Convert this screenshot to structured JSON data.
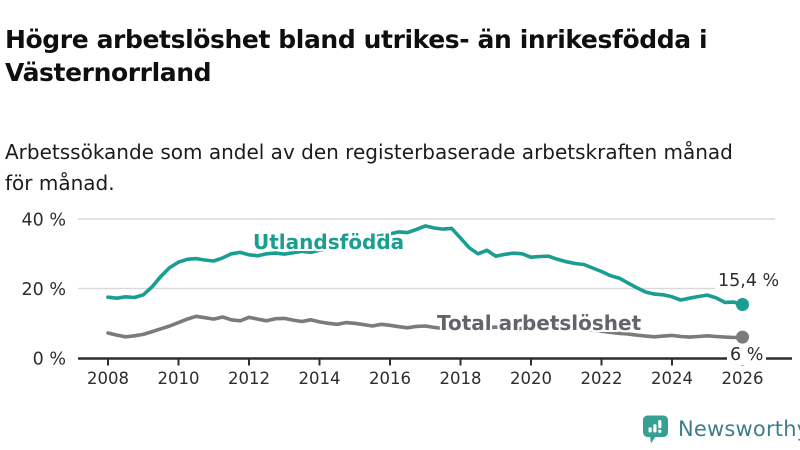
{
  "header": {
    "title_lines": [
      "Högre arbetslöshet bland utrikes- än inrikesfödda i",
      "Västernorrland"
    ],
    "subtitle_lines": [
      "Arbetssökande som andel av den registerbaserade arbetskraften månad",
      "för månad."
    ]
  },
  "colors": {
    "teal": "#1a9e91",
    "gray": "#7b7b7b",
    "series_label_gray": "#63636b",
    "axis": "#2d2d2d",
    "grid": "#d9d9d9",
    "tick_label": "#2d2d2d",
    "value_label": "#2d2d2d",
    "logo_icon": "#36a193",
    "logo_text": "#3e7d8e"
  },
  "chart_data": {
    "type": "line",
    "title": "Högre arbetslöshet bland utrikes- än inrikesfödda i Västernorrland",
    "subtitle": "Arbetssökande som andel av den registerbaserade arbetskraften månad för månad.",
    "unit": "%",
    "grid": "horizontal",
    "legend": "inline-labels",
    "ylim": [
      0,
      44
    ],
    "xlim": [
      2008,
      2026.1
    ],
    "y_ticks": [
      {
        "v": 0,
        "label": "0 %"
      },
      {
        "v": 20,
        "label": "20 %"
      },
      {
        "v": 40,
        "label": "40 %"
      }
    ],
    "x_ticks": [
      {
        "v": 2008,
        "label": "2008"
      },
      {
        "v": 2010,
        "label": "2010"
      },
      {
        "v": 2012,
        "label": "2012"
      },
      {
        "v": 2014,
        "label": "2014"
      },
      {
        "v": 2016,
        "label": "2016"
      },
      {
        "v": 2018,
        "label": "2018"
      },
      {
        "v": 2020,
        "label": "2020"
      },
      {
        "v": 2022,
        "label": "2022"
      },
      {
        "v": 2024,
        "label": "2024"
      },
      {
        "v": 2026,
        "label": "2026"
      }
    ],
    "x": [
      2008,
      2008.25,
      2008.5,
      2008.75,
      2009,
      2009.25,
      2009.5,
      2009.75,
      2010,
      2010.25,
      2010.5,
      2010.75,
      2011,
      2011.25,
      2011.5,
      2011.75,
      2012,
      2012.25,
      2012.5,
      2012.75,
      2013,
      2013.25,
      2013.5,
      2013.75,
      2014,
      2014.25,
      2014.5,
      2014.75,
      2015,
      2015.25,
      2015.5,
      2015.75,
      2016,
      2016.25,
      2016.5,
      2016.75,
      2017,
      2017.25,
      2017.5,
      2017.75,
      2018,
      2018.25,
      2018.5,
      2018.75,
      2019,
      2019.25,
      2019.5,
      2019.75,
      2020,
      2020.25,
      2020.5,
      2020.75,
      2021,
      2021.25,
      2021.5,
      2021.75,
      2022,
      2022.25,
      2022.5,
      2022.75,
      2023,
      2023.25,
      2023.5,
      2023.75,
      2024,
      2024.25,
      2024.5,
      2024.75,
      2025,
      2025.25,
      2025.5,
      2025.75,
      2026
    ],
    "series": [
      {
        "name": "Utlandsfödda",
        "color": "#1a9e91",
        "end_label": "15,4 %",
        "end_value": 15.4,
        "values": [
          17.5,
          17.2,
          17.6,
          17.4,
          18.2,
          20.5,
          23.5,
          26,
          27.6,
          28.4,
          28.6,
          28.2,
          27.9,
          28.8,
          30,
          30.4,
          29.7,
          29.4,
          30,
          30.2,
          29.9,
          30.3,
          30.7,
          30.4,
          31,
          31.6,
          32.1,
          32.8,
          33.5,
          34.1,
          34.8,
          35.2,
          35.7,
          36.3,
          36.1,
          37,
          38,
          37.4,
          37.1,
          37.3,
          34.5,
          31.7,
          30,
          31,
          29.3,
          29.8,
          30.2,
          30,
          29,
          29.2,
          29.3,
          28.4,
          27.7,
          27.2,
          26.9,
          25.9,
          24.9,
          23.7,
          23,
          21.6,
          20.2,
          19,
          18.4,
          18.2,
          17.6,
          16.7,
          17.2,
          17.7,
          18.1,
          17.3,
          16,
          16.1,
          15.4
        ]
      },
      {
        "name": "Total arbetslöshet",
        "color": "#7b7b7b",
        "end_label": "6 %",
        "end_value": 6,
        "values": [
          7.2,
          6.6,
          6.1,
          6.4,
          6.8,
          7.6,
          8.4,
          9.2,
          10.2,
          11.2,
          12,
          11.6,
          11.2,
          11.8,
          11,
          10.7,
          11.7,
          11.2,
          10.7,
          11.3,
          11.4,
          10.9,
          10.5,
          11,
          10.4,
          10,
          9.7,
          10.2,
          10,
          9.6,
          9.2,
          9.7,
          9.4,
          9,
          8.7,
          9.1,
          9.2,
          8.8,
          8.5,
          8.9,
          9,
          8.6,
          8.3,
          8.7,
          8.9,
          8.5,
          8.2,
          8.6,
          8.8,
          9.8,
          10,
          9.6,
          9.2,
          8.7,
          8.3,
          8,
          7.7,
          7.4,
          7.1,
          6.9,
          6.6,
          6.3,
          6.1,
          6.3,
          6.5,
          6.2,
          6,
          6.2,
          6.4,
          6.2,
          6,
          5.9,
          6
        ]
      }
    ]
  },
  "footer": {
    "brand": "Newsworthy"
  }
}
